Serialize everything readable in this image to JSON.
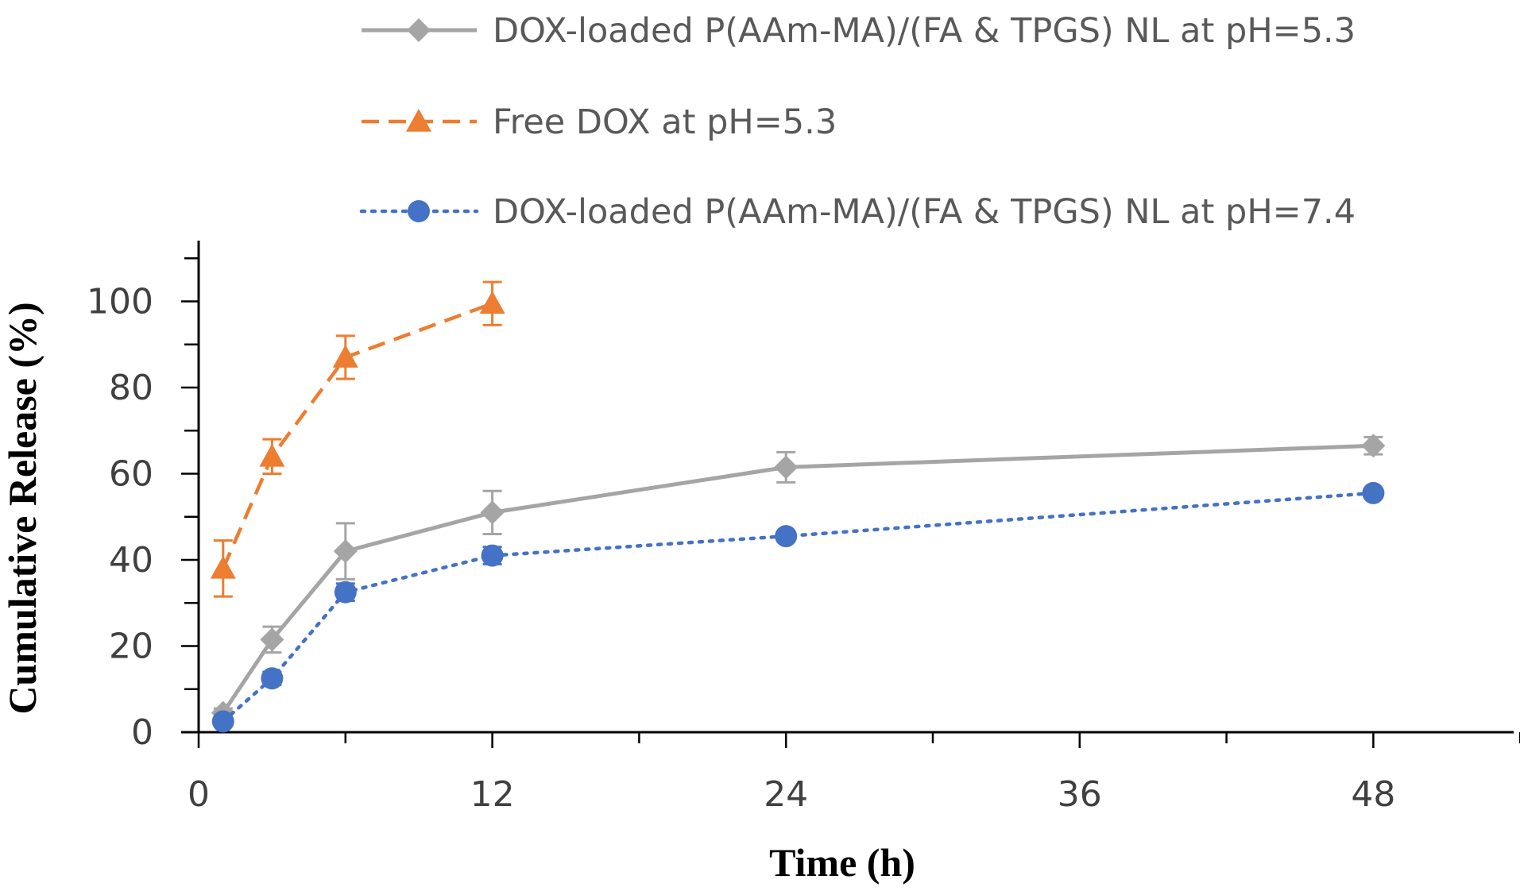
{
  "chart_data": {
    "type": "line",
    "title": "",
    "xlabel": "Time (h)",
    "ylabel": "Cumulative Release (%)",
    "xlim": [
      0,
      54
    ],
    "ylim": [
      0,
      110
    ],
    "xticks": [
      0,
      12,
      24,
      36,
      48
    ],
    "yticks": [
      0,
      20,
      40,
      60,
      80,
      100
    ],
    "xtick_labels": [
      "0",
      "12",
      "24",
      "36",
      "48"
    ],
    "ytick_labels": [
      "0",
      "20",
      "40",
      "60",
      "80",
      "100"
    ],
    "grid": false,
    "legend_position": "top",
    "series": [
      {
        "name": "DOX-loaded P(AAm-MA)/(FA & TPGS)  NL at pH=5.3",
        "color": "#a5a5a5",
        "line_style": "solid",
        "marker": "diamond",
        "x": [
          1,
          3,
          6,
          12,
          24,
          48
        ],
        "y": [
          4.5,
          21.5,
          42,
          51,
          61.5,
          66.5
        ],
        "error": [
          1.0,
          3.0,
          6.5,
          5.0,
          3.5,
          2.0
        ]
      },
      {
        "name": "Free DOX at pH=5.3",
        "color": "#ed7d31",
        "line_style": "dashed",
        "marker": "triangle",
        "x": [
          1,
          3,
          6,
          12
        ],
        "y": [
          38,
          64,
          87,
          99.5
        ],
        "error": [
          6.5,
          4.0,
          5.0,
          5.0
        ]
      },
      {
        "name": "DOX-loaded P(AAm-MA)/(FA & TPGS)  NL at pH=7.4",
        "color": "#4472c4",
        "line_style": "dotted",
        "marker": "circle",
        "x": [
          1,
          3,
          6,
          12,
          24,
          48
        ],
        "y": [
          2.5,
          12.5,
          32.5,
          41,
          45.5,
          55.5
        ],
        "error": [
          1.0,
          1.5,
          2.0,
          2.0,
          1.0,
          1.0
        ]
      }
    ]
  }
}
